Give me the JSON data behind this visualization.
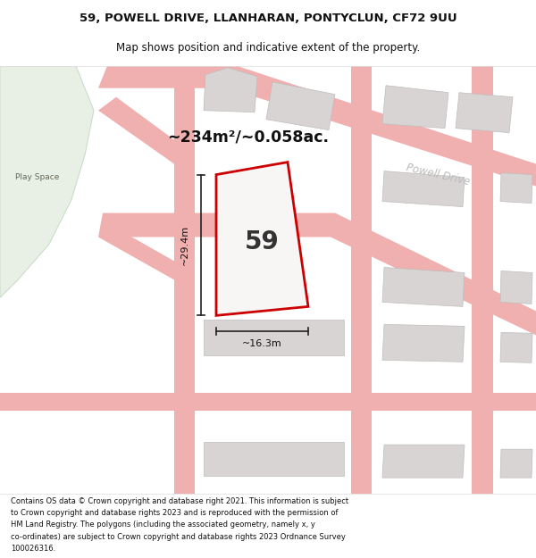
{
  "title_line1": "59, POWELL DRIVE, LLANHARAN, PONTYCLUN, CF72 9UU",
  "title_line2": "Map shows position and indicative extent of the property.",
  "footer_lines": [
    "Contains OS data © Crown copyright and database right 2021. This information is subject",
    "to Crown copyright and database rights 2023 and is reproduced with the permission of",
    "HM Land Registry. The polygons (including the associated geometry, namely x, y",
    "co-ordinates) are subject to Crown copyright and database rights 2023 Ordnance Survey",
    "100026316."
  ],
  "area_label": "~234m²/~0.058ac.",
  "width_label": "~16.3m",
  "height_label": "~29.4m",
  "plot_number": "59",
  "road_label_right": "Powell Drive",
  "road_label_center": "Powell Drive",
  "play_space_label": "Play Space",
  "road_color": "#f0b0b0",
  "building_color": "#d8d4d4",
  "green_color": "#e8f0e6",
  "plot_fill": "#f5f2f2",
  "plot_outline": "#cc0000",
  "map_bg": "#f5f2f2"
}
